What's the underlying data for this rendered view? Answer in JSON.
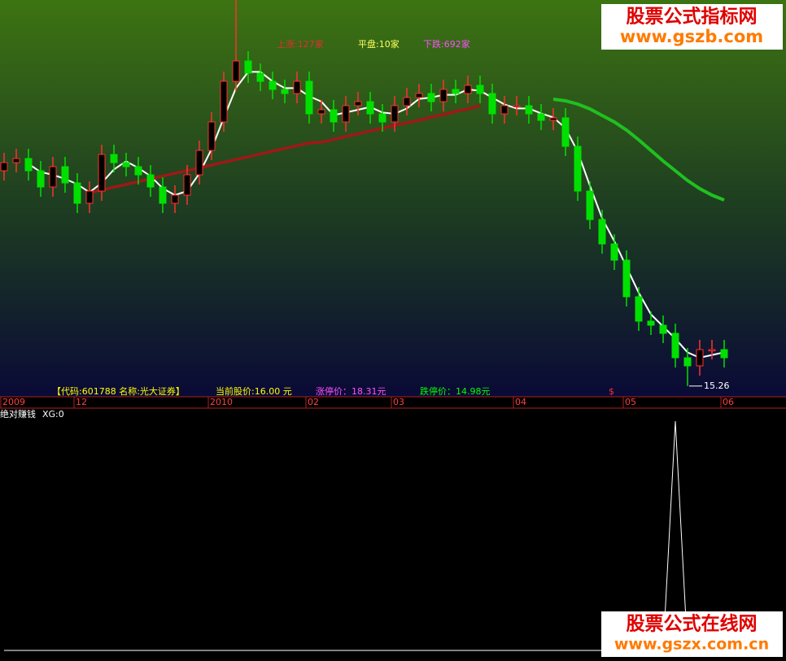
{
  "chart_data": {
    "type": "candlestick",
    "ylim": [
      15,
      39
    ],
    "categories": [
      "2009",
      null,
      null,
      null,
      null,
      null,
      "12",
      null,
      null,
      null,
      null,
      null,
      null,
      null,
      null,
      null,
      null,
      "2010",
      null,
      null,
      null,
      null,
      null,
      null,
      null,
      "02",
      null,
      null,
      null,
      null,
      null,
      null,
      "03",
      null,
      null,
      null,
      null,
      null,
      null,
      null,
      null,
      null,
      "04",
      null,
      null,
      null,
      null,
      null,
      null,
      null,
      null,
      "05",
      null,
      null,
      null,
      null,
      null,
      null,
      null,
      "06"
    ],
    "open": [
      28.5,
      29.0,
      29.25,
      28.5,
      27.5,
      28.75,
      27.75,
      26.5,
      27.25,
      29.5,
      29.0,
      28.75,
      28.25,
      27.5,
      26.5,
      27.0,
      28.25,
      29.75,
      31.5,
      34.0,
      35.25,
      34.5,
      34.0,
      33.5,
      33.25,
      34.0,
      32.0,
      32.25,
      31.5,
      32.5,
      32.75,
      32.0,
      31.5,
      32.5,
      33.0,
      33.25,
      32.75,
      33.5,
      33.25,
      33.75,
      33.25,
      32.0,
      32.5,
      32.5,
      32.0,
      31.6,
      31.75,
      30.0,
      27.25,
      25.5,
      24.0,
      23.0,
      20.75,
      19.25,
      19.0,
      18.5,
      17.0,
      16.5,
      17.5,
      17.5
    ],
    "high": [
      29.6,
      29.85,
      29.85,
      29.1,
      29.35,
      29.35,
      28.35,
      27.85,
      30.1,
      30.1,
      29.6,
      29.35,
      28.85,
      28.1,
      27.6,
      28.85,
      30.35,
      32.1,
      34.6,
      39,
      35.85,
      35.1,
      34.6,
      34.1,
      34.6,
      34.6,
      32.85,
      32.85,
      33.1,
      33.35,
      33.35,
      32.6,
      33.1,
      33.6,
      33.85,
      33.85,
      34.1,
      34.1,
      34.35,
      34.35,
      33.85,
      33.1,
      33.1,
      33.1,
      32.6,
      32.35,
      32.35,
      30.6,
      27.85,
      26.1,
      24.6,
      23.6,
      21.35,
      19.85,
      19.6,
      19.1,
      17.6,
      18.1,
      18.1,
      18.1
    ],
    "low": [
      27.9,
      28.4,
      27.9,
      26.9,
      26.9,
      27.15,
      25.9,
      25.9,
      26.65,
      28.4,
      28.15,
      27.65,
      26.9,
      25.9,
      25.9,
      26.4,
      27.65,
      29.15,
      30.9,
      33.4,
      33.9,
      33.4,
      32.9,
      32.65,
      32.65,
      31.4,
      31.4,
      30.9,
      30.9,
      31.9,
      31.4,
      30.9,
      30.9,
      31.9,
      32.4,
      32.15,
      32.15,
      32.65,
      32.65,
      32.65,
      31.4,
      31.4,
      31.9,
      31.4,
      31.0,
      31.0,
      29.4,
      26.65,
      24.9,
      23.4,
      22.4,
      20.15,
      18.65,
      18.4,
      17.9,
      16.4,
      15.26,
      15.9,
      16.9,
      16.4
    ],
    "close": [
      29.0,
      29.25,
      28.5,
      27.5,
      28.75,
      27.75,
      26.5,
      27.25,
      29.5,
      29.0,
      28.75,
      28.25,
      27.5,
      26.5,
      27.0,
      28.25,
      29.75,
      31.5,
      34.0,
      35.25,
      34.5,
      34.0,
      33.5,
      33.25,
      34.0,
      32.0,
      32.25,
      31.5,
      32.5,
      32.75,
      32.0,
      31.5,
      32.5,
      33.0,
      33.25,
      32.75,
      33.5,
      33.25,
      33.75,
      33.25,
      32.0,
      32.5,
      32.5,
      32.0,
      31.6,
      31.75,
      30.0,
      27.25,
      25.5,
      24.0,
      23.0,
      20.75,
      19.25,
      19.0,
      18.5,
      17.0,
      16.5,
      17.5,
      17.5,
      17.0
    ],
    "up_color": "#ff3030",
    "down_color": "#00e000",
    "lines": [
      {
        "color": "#ffffff",
        "values": [
          null,
          null,
          28.92,
          28.42,
          28.25,
          28.0,
          27.67,
          27.17,
          27.75,
          28.58,
          29.08,
          28.67,
          28.17,
          27.42,
          27.0,
          27.25,
          28.33,
          29.83,
          31.75,
          33.58,
          34.58,
          34.58,
          34.0,
          33.58,
          33.58,
          33.08,
          32.75,
          31.92,
          32.08,
          32.25,
          32.42,
          32.08,
          32.0,
          32.33,
          32.92,
          33.0,
          33.17,
          33.17,
          33.5,
          33.42,
          33.0,
          32.58,
          32.33,
          32.33,
          32.03,
          31.78,
          31.12,
          29.67,
          27.58,
          25.58,
          24.17,
          22.58,
          21.0,
          19.67,
          18.92,
          18.17,
          17.33,
          17.0,
          17.17,
          17.33
        ]
      },
      {
        "color": "#a01818",
        "values": [
          null,
          null,
          null,
          null,
          null,
          null,
          null,
          27.15,
          27.32,
          27.49,
          27.66,
          27.83,
          28.0,
          28.17,
          28.34,
          28.51,
          28.68,
          28.85,
          29.02,
          29.19,
          29.36,
          29.53,
          29.7,
          29.87,
          30.04,
          30.21,
          30.25,
          30.42,
          30.6,
          30.77,
          30.94,
          31.1,
          31.3,
          31.45,
          31.6,
          31.8,
          31.95,
          32.15,
          32.3,
          32.5,
          null,
          null,
          null,
          null,
          null,
          null,
          null,
          null,
          null,
          null,
          null,
          null,
          null,
          null,
          null,
          null,
          null,
          null,
          null,
          null
        ]
      },
      {
        "color": "#20c020",
        "values": [
          null,
          null,
          null,
          null,
          null,
          null,
          null,
          null,
          null,
          null,
          null,
          null,
          null,
          null,
          null,
          null,
          null,
          null,
          null,
          null,
          null,
          null,
          null,
          null,
          null,
          null,
          null,
          null,
          null,
          null,
          null,
          null,
          null,
          null,
          null,
          null,
          null,
          null,
          null,
          null,
          null,
          null,
          null,
          null,
          null,
          32.9,
          32.8,
          32.6,
          32.3,
          31.9,
          31.5,
          31.0,
          30.4,
          29.75,
          29.1,
          28.5,
          27.9,
          27.4,
          27.0,
          26.7
        ]
      }
    ],
    "indicator": {
      "name": "绝对赚钱",
      "label": "XG:0",
      "color": "#ffffff",
      "ylim": [
        0,
        1
      ],
      "values": [
        0,
        0,
        0,
        0,
        0,
        0,
        0,
        0,
        0,
        0,
        0,
        0,
        0,
        0,
        0,
        0,
        0,
        0,
        0,
        0,
        0,
        0,
        0,
        0,
        0,
        0,
        0,
        0,
        0,
        0,
        0,
        0,
        0,
        0,
        0,
        0,
        0,
        0,
        0,
        0,
        0,
        0,
        0,
        0,
        0,
        0,
        0,
        0,
        0,
        0,
        0,
        0,
        0,
        0,
        0,
        1,
        0,
        0,
        0,
        0
      ]
    }
  },
  "market": {
    "up": "上涨:127家",
    "flat": "平盘:10家",
    "down": "下跌:692家"
  },
  "status": {
    "code": "【代码:601788 名称:光大证券】",
    "price": "当前股价:16.00 元",
    "limit_up": "涨停价：18.31元",
    "limit_down": "跌停价：14.98元",
    "mark": "$"
  },
  "watermarks": {
    "top_name": "股票公式指标网",
    "top_url": "www.gszb.com",
    "bottom_name": "股票公式在线网",
    "bottom_url": "www.gszx.com.cn"
  }
}
